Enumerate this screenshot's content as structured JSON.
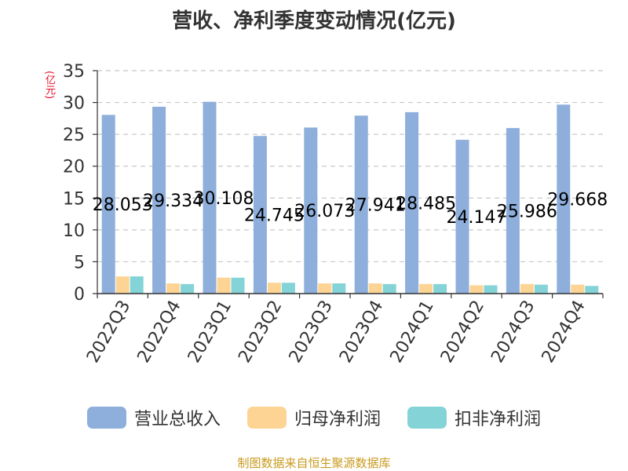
{
  "colors": {
    "revenue": "#8eaedb",
    "net_profit": "#fdd494",
    "deducted_profit": "#84d3d7",
    "axis": "#333333",
    "grid": "#c8c8c8",
    "unit": "#e8102a",
    "source": "#c89a1e"
  },
  "chart_data": {
    "type": "bar",
    "title": "营收、净利季度变动情况(亿元)",
    "ylabel": "(亿元)",
    "xlabel": "",
    "ylim": [
      0,
      35
    ],
    "yticks": [
      0,
      5,
      10,
      15,
      20,
      25,
      30,
      35
    ],
    "grid": true,
    "legend_position": "bottom",
    "categories": [
      "2022Q3",
      "2022Q4",
      "2023Q1",
      "2023Q2",
      "2023Q3",
      "2023Q4",
      "2024Q1",
      "2024Q2",
      "2024Q3",
      "2024Q4"
    ],
    "series": [
      {
        "name": "营业总收入",
        "values": [
          28.053,
          29.334,
          30.108,
          24.745,
          26.073,
          27.941,
          28.485,
          24.147,
          25.986,
          29.668
        ],
        "show_labels": true
      },
      {
        "name": "归母净利润",
        "values": [
          2.7,
          1.6,
          2.5,
          1.7,
          1.6,
          1.6,
          1.5,
          1.3,
          1.5,
          1.4
        ],
        "show_labels": false
      },
      {
        "name": "扣非净利润",
        "values": [
          2.7,
          1.5,
          2.5,
          1.7,
          1.6,
          1.5,
          1.5,
          1.3,
          1.4,
          1.2
        ],
        "show_labels": false
      }
    ]
  },
  "footer": {
    "source": "制图数据来自恒生聚源数据库"
  }
}
